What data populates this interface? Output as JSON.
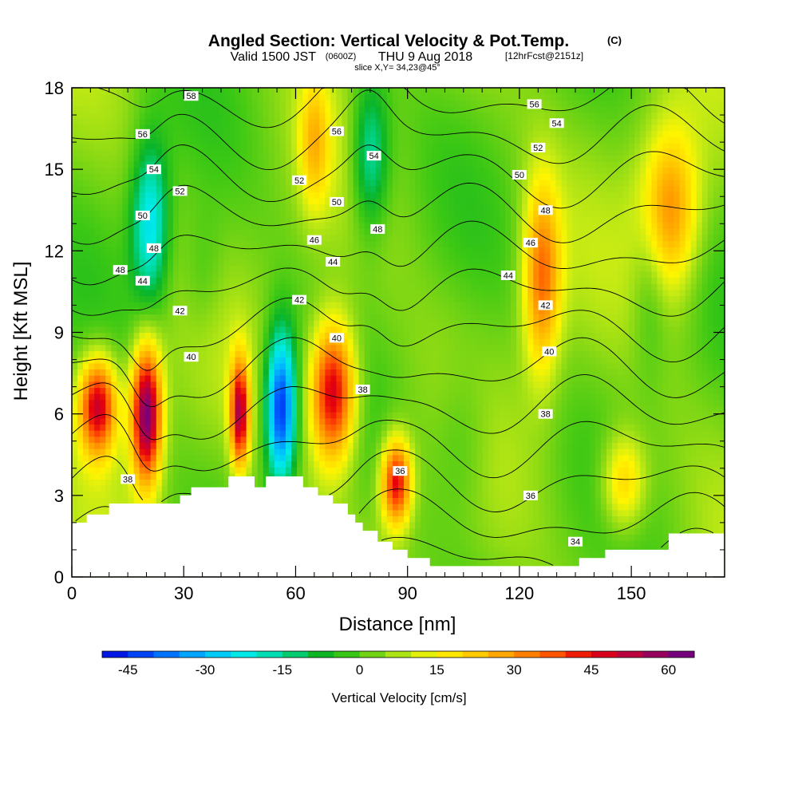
{
  "chart_data": {
    "type": "heatmap",
    "title": "Angled Section: Vertical Velocity & Pot.Temp.",
    "title_units": "(C)",
    "subtitle": {
      "valid": "Valid 1500 JST",
      "zone": "(0600Z)",
      "date": "THU 9 Aug 2018",
      "fcst": "[12hrFcst@2151z]"
    },
    "slice_label": "slice X,Y= 34,23@45°",
    "xlabel": "Distance [nm]",
    "ylabel": "Height [Kft MSL]",
    "xlim": [
      0,
      175
    ],
    "ylim": [
      0,
      18
    ],
    "x_ticks": [
      "0",
      "30",
      "60",
      "90",
      "120",
      "150"
    ],
    "y_ticks": [
      "0",
      "3",
      "6",
      "9",
      "12",
      "15",
      "18"
    ],
    "colorbar": {
      "label": "Vertical Velocity [cm/s]",
      "ticks": [
        "-45",
        "-30",
        "-15",
        "0",
        "15",
        "30",
        "45",
        "60"
      ],
      "min": -50,
      "max": 65,
      "step": 5
    },
    "terrain": {
      "x": [
        0,
        4,
        4,
        10,
        10,
        29,
        29,
        32,
        32,
        42,
        42,
        49,
        49,
        52,
        52,
        62,
        62,
        66,
        66,
        70,
        70,
        74,
        74,
        76,
        76,
        78,
        78,
        82,
        82,
        86,
        86,
        90,
        90,
        96,
        96,
        136,
        136,
        143,
        143,
        160,
        160,
        175
      ],
      "y": [
        2.0,
        2.0,
        2.3,
        2.3,
        2.7,
        2.7,
        3.0,
        3.0,
        3.3,
        3.3,
        3.7,
        3.7,
        3.3,
        3.3,
        3.7,
        3.7,
        3.3,
        3.3,
        3.0,
        3.0,
        2.7,
        2.7,
        2.3,
        2.3,
        2.0,
        2.0,
        1.7,
        1.7,
        1.3,
        1.3,
        1.0,
        1.0,
        0.7,
        0.7,
        0.4,
        0.4,
        0.7,
        0.7,
        1.0,
        1.0,
        1.6,
        1.6
      ]
    },
    "velocity_cells": [
      {
        "x": 7,
        "z": 6.3,
        "w": 47,
        "sx": 5,
        "sz": 1.8
      },
      {
        "x": 20,
        "z": 6.0,
        "w": 60,
        "sx": 4,
        "sz": 2.5
      },
      {
        "x": 45,
        "z": 6.0,
        "w": 48,
        "sx": 2.5,
        "sz": 2.0
      },
      {
        "x": 56,
        "z": 6.2,
        "w": -48,
        "sx": 4,
        "sz": 2.8
      },
      {
        "x": 70,
        "z": 6.8,
        "w": 50,
        "sx": 6,
        "sz": 2.6
      },
      {
        "x": 87,
        "z": 3.5,
        "w": 45,
        "sx": 4,
        "sz": 1.6
      },
      {
        "x": 21,
        "z": 13.0,
        "w": -28,
        "sx": 5,
        "sz": 3.0
      },
      {
        "x": 80,
        "z": 15.5,
        "w": -22,
        "sx": 5,
        "sz": 2.8
      },
      {
        "x": 126,
        "z": 11.0,
        "w": 32,
        "sx": 5,
        "sz": 3.5
      },
      {
        "x": 160,
        "z": 13.5,
        "w": 30,
        "sx": 8,
        "sz": 3.0
      },
      {
        "x": 148,
        "z": 3.5,
        "w": 22,
        "sx": 6,
        "sz": 1.8
      },
      {
        "x": 65,
        "z": 16.0,
        "w": 18,
        "sx": 4,
        "sz": 2.5
      },
      {
        "x": 155,
        "z": 11.0,
        "w": -10,
        "sx": 5,
        "sz": 3.5
      },
      {
        "x": 105,
        "z": 5.0,
        "w": -8,
        "sx": 8,
        "sz": 3.0
      },
      {
        "x": 35,
        "z": 11.0,
        "w": -7,
        "sx": 6,
        "sz": 2.5
      }
    ],
    "isotherm_levels": [
      34,
      36,
      38,
      40,
      42,
      44,
      46,
      48,
      50,
      52,
      54,
      56,
      58
    ],
    "contour_labels": [
      {
        "text": "58",
        "x": 32,
        "y": 17.7
      },
      {
        "text": "56",
        "x": 19,
        "y": 16.3
      },
      {
        "text": "54",
        "x": 22,
        "y": 15.0
      },
      {
        "text": "52",
        "x": 29,
        "y": 14.2
      },
      {
        "text": "50",
        "x": 19,
        "y": 13.3
      },
      {
        "text": "48",
        "x": 22,
        "y": 12.1
      },
      {
        "text": "48",
        "x": 13,
        "y": 11.3
      },
      {
        "text": "44",
        "x": 19,
        "y": 10.9
      },
      {
        "text": "42",
        "x": 29,
        "y": 9.8
      },
      {
        "text": "40",
        "x": 32,
        "y": 8.1
      },
      {
        "text": "38",
        "x": 15,
        "y": 3.6
      },
      {
        "text": "56",
        "x": 71,
        "y": 16.4
      },
      {
        "text": "54",
        "x": 81,
        "y": 15.5
      },
      {
        "text": "52",
        "x": 61,
        "y": 14.6
      },
      {
        "text": "50",
        "x": 71,
        "y": 13.8
      },
      {
        "text": "48",
        "x": 82,
        "y": 12.8
      },
      {
        "text": "46",
        "x": 65,
        "y": 12.4
      },
      {
        "text": "44",
        "x": 70,
        "y": 11.6
      },
      {
        "text": "42",
        "x": 61,
        "y": 10.2
      },
      {
        "text": "40",
        "x": 71,
        "y": 8.8
      },
      {
        "text": "38",
        "x": 78,
        "y": 6.9
      },
      {
        "text": "36",
        "x": 88,
        "y": 3.9
      },
      {
        "text": "56",
        "x": 124,
        "y": 17.4
      },
      {
        "text": "54",
        "x": 130,
        "y": 16.7
      },
      {
        "text": "52",
        "x": 125,
        "y": 15.8
      },
      {
        "text": "50",
        "x": 120,
        "y": 14.8
      },
      {
        "text": "48",
        "x": 127,
        "y": 13.5
      },
      {
        "text": "46",
        "x": 123,
        "y": 12.3
      },
      {
        "text": "44",
        "x": 117,
        "y": 11.1
      },
      {
        "text": "42",
        "x": 127,
        "y": 10.0
      },
      {
        "text": "40",
        "x": 128,
        "y": 8.3
      },
      {
        "text": "38",
        "x": 127,
        "y": 6.0
      },
      {
        "text": "36",
        "x": 123,
        "y": 3.0
      },
      {
        "text": "34",
        "x": 135,
        "y": 1.3
      }
    ]
  }
}
